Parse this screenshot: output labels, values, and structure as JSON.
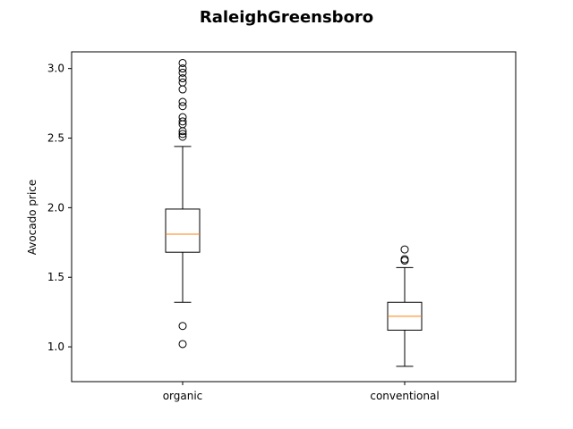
{
  "chart_data": {
    "type": "boxplot",
    "title": "RaleighGreensboro",
    "xlabel": "",
    "ylabel": "Avocado price",
    "ylim": [
      0.75,
      3.12
    ],
    "yticks": [
      "1.0",
      "1.5",
      "2.0",
      "2.5",
      "3.0"
    ],
    "ytick_values": [
      1.0,
      1.5,
      2.0,
      2.5,
      3.0
    ],
    "categories": [
      "organic",
      "conventional"
    ],
    "grid": false,
    "colors": {
      "box": "#000000",
      "median": "#ff7f0e"
    },
    "boxes": [
      {
        "name": "organic",
        "whisker_low": 1.32,
        "q1": 1.68,
        "median": 1.81,
        "q3": 1.99,
        "whisker_high": 2.44,
        "fliers": [
          1.02,
          1.15,
          2.51,
          2.53,
          2.55,
          2.6,
          2.62,
          2.65,
          2.73,
          2.76,
          2.85,
          2.9,
          2.93,
          2.97,
          3.0,
          3.04
        ]
      },
      {
        "name": "conventional",
        "whisker_low": 0.86,
        "q1": 1.12,
        "median": 1.22,
        "q3": 1.32,
        "whisker_high": 1.57,
        "fliers": [
          1.62,
          1.63,
          1.7
        ]
      }
    ]
  }
}
